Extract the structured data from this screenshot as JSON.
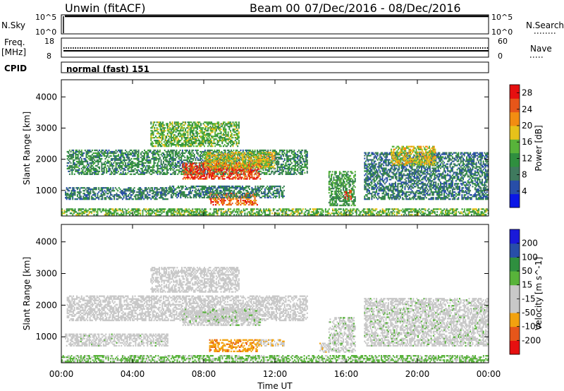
{
  "header": {
    "title": "Unwin (fitACF)",
    "beam": "Beam 00",
    "date_range": "07/Dec/2016 - 08/Dec/2016"
  },
  "status_panels": {
    "nsky_label": "N.Sky",
    "nsky_ticks": [
      "10^5",
      "10^0"
    ],
    "nsearch_label": "N.Search",
    "nsearch_ticks": [
      "10^5",
      "10^0"
    ],
    "freq_label": "Freq.",
    "freq_unit": "[MHz]",
    "freq_ticks": [
      "18",
      "8"
    ],
    "nave_label": "Nave",
    "nave_ticks": [
      "60",
      "0"
    ],
    "cpid_label": "CPID",
    "cpid_value": "normal (fast) 151"
  },
  "colors": {
    "power": [
      "#0a17e6",
      "#284ea8",
      "#3f7a5e",
      "#2f8f3f",
      "#58b33a",
      "#e6c21a",
      "#f28d12",
      "#e6561a",
      "#e61010"
    ],
    "velocity": [
      "#e61010",
      "#e6561a",
      "#f2a20f",
      "#c8c8c8",
      "#c8c8c8",
      "#58b33a",
      "#2f8f3f",
      "#284ea8",
      "#1a1ad9"
    ]
  },
  "chart_data": [
    {
      "type": "heatmap",
      "title": "Power",
      "ylabel": "Slant Range [km]",
      "xlabel": "Time UT",
      "x_ticks": [
        "00:00",
        "04:00",
        "08:00",
        "12:00",
        "16:00",
        "20:00",
        "00:00"
      ],
      "xlim_hours": [
        0,
        24
      ],
      "ylim_km": [
        180,
        4550
      ],
      "y_ticks": [
        1000,
        2000,
        3000,
        4000
      ],
      "colorbar_label": "Power [dB]",
      "colorbar_ticks": [
        4,
        8,
        12,
        16,
        20,
        24,
        28
      ],
      "colorbar_range": [
        0,
        30
      ],
      "regions": [
        {
          "t0": 0.3,
          "t1": 13.8,
          "r0": 1500,
          "r1": 2300,
          "v": 10
        },
        {
          "t0": 6.8,
          "t1": 11.2,
          "r0": 1350,
          "r1": 1850,
          "v": 26
        },
        {
          "t0": 8.0,
          "t1": 12.0,
          "r0": 1700,
          "r1": 2200,
          "v": 18
        },
        {
          "t0": 8.3,
          "t1": 11.0,
          "r0": 520,
          "r1": 900,
          "v": 24
        },
        {
          "t0": 6.0,
          "t1": 12.5,
          "r0": 750,
          "r1": 1150,
          "v": 9
        },
        {
          "t0": 0.2,
          "t1": 6.0,
          "r0": 700,
          "r1": 1100,
          "v": 8
        },
        {
          "t0": 15.0,
          "t1": 16.5,
          "r0": 500,
          "r1": 1600,
          "v": 12
        },
        {
          "t0": 15.9,
          "t1": 16.3,
          "r0": 700,
          "r1": 1000,
          "v": 27
        },
        {
          "t0": 17.0,
          "t1": 24.0,
          "r0": 700,
          "r1": 2200,
          "v": 8
        },
        {
          "t0": 18.5,
          "t1": 21.0,
          "r0": 1800,
          "r1": 2400,
          "v": 18
        },
        {
          "t0": 5.0,
          "t1": 10.0,
          "r0": 2400,
          "r1": 3200,
          "v": 14
        },
        {
          "t0": 0.0,
          "t1": 24.0,
          "r0": 200,
          "r1": 400,
          "v": 14
        }
      ]
    },
    {
      "type": "heatmap",
      "title": "Velocity",
      "ylabel": "Slant Range [km]",
      "xlabel": "Time UT",
      "x_ticks": [
        "00:00",
        "04:00",
        "08:00",
        "12:00",
        "16:00",
        "20:00",
        "00:00"
      ],
      "xlim_hours": [
        0,
        24
      ],
      "ylim_km": [
        180,
        4550
      ],
      "y_ticks": [
        1000,
        2000,
        3000,
        4000
      ],
      "colorbar_label": "Velocity [m s^-1]",
      "colorbar_ticks": [
        "200",
        "100",
        "50",
        "15",
        "-15",
        "-50",
        "-100",
        "-200"
      ],
      "colorbar_range": [
        -250,
        250
      ],
      "regions": [
        {
          "t0": 0.3,
          "t1": 13.8,
          "r0": 1500,
          "r1": 2300,
          "v": -5
        },
        {
          "t0": 6.8,
          "t1": 11.2,
          "r0": 1350,
          "r1": 1850,
          "v": 5
        },
        {
          "t0": 8.3,
          "t1": 11.0,
          "r0": 520,
          "r1": 900,
          "v": -120
        },
        {
          "t0": 11.0,
          "t1": 12.5,
          "r0": 700,
          "r1": 900,
          "v": -70
        },
        {
          "t0": 0.2,
          "t1": 6.0,
          "r0": 700,
          "r1": 1100,
          "v": 0
        },
        {
          "t0": 15.0,
          "t1": 16.5,
          "r0": 500,
          "r1": 1600,
          "v": 5
        },
        {
          "t0": 14.5,
          "t1": 15.0,
          "r0": 500,
          "r1": 800,
          "v": -60
        },
        {
          "t0": 17.0,
          "t1": 24.0,
          "r0": 700,
          "r1": 2200,
          "v": 3
        },
        {
          "t0": 5.0,
          "t1": 10.0,
          "r0": 2400,
          "r1": 3200,
          "v": -40
        },
        {
          "t0": 0.0,
          "t1": 24.0,
          "r0": 200,
          "r1": 400,
          "v": 40
        }
      ]
    }
  ]
}
